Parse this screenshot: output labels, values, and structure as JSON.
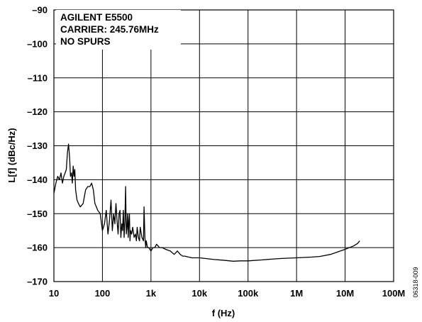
{
  "chart_data": {
    "type": "line",
    "title": "",
    "xlabel": "f (Hz)",
    "ylabel": "L[f] (dBc/Hz)",
    "x_scale": "log",
    "xlim": [
      10,
      100000000
    ],
    "ylim": [
      -170,
      -90
    ],
    "grid": true,
    "x_ticks": [
      {
        "value": 10,
        "label": "10"
      },
      {
        "value": 100,
        "label": "100"
      },
      {
        "value": 1000,
        "label": "1k"
      },
      {
        "value": 10000,
        "label": "10k"
      },
      {
        "value": 100000,
        "label": "100k"
      },
      {
        "value": 1000000,
        "label": "1M"
      },
      {
        "value": 10000000,
        "label": "10M"
      },
      {
        "value": 100000000,
        "label": "100M"
      }
    ],
    "y_ticks": [
      {
        "value": -90,
        "label": "–90"
      },
      {
        "value": -100,
        "label": "–100"
      },
      {
        "value": -110,
        "label": "–110"
      },
      {
        "value": -120,
        "label": "–120"
      },
      {
        "value": -130,
        "label": "–130"
      },
      {
        "value": -140,
        "label": "–140"
      },
      {
        "value": -150,
        "label": "–150"
      },
      {
        "value": -160,
        "label": "–160"
      },
      {
        "value": -170,
        "label": "–170"
      }
    ],
    "annotations": [
      "AGILENT E5500",
      "CARRIER: 245.76MHz",
      "NO SPURS"
    ],
    "figure_id": "06318-009",
    "series": [
      {
        "x": [
          10,
          11,
          12,
          13,
          14,
          15,
          16,
          17,
          18,
          19,
          20,
          21,
          22,
          23,
          24,
          25,
          26,
          27,
          28,
          30,
          32,
          35,
          40,
          45,
          50,
          55,
          60,
          65,
          70,
          75,
          80,
          90,
          100,
          110,
          120,
          130,
          140,
          150,
          160,
          170,
          180,
          190,
          200,
          210,
          220,
          230,
          240,
          250,
          260,
          270,
          280,
          290,
          300,
          310,
          320,
          330,
          340,
          350,
          360,
          370,
          380,
          400,
          420,
          450,
          480,
          500,
          520,
          550,
          580,
          600,
          650,
          700,
          720,
          750,
          780,
          800,
          850,
          900,
          1000,
          1100,
          1200,
          1300,
          1500,
          1700,
          2000,
          2500,
          3000,
          3500,
          4000,
          4500,
          5000,
          6000,
          7000,
          8000,
          10000,
          15000,
          20000,
          30000,
          50000,
          70000,
          100000,
          200000,
          300000,
          500000,
          1000000,
          2000000,
          3000000,
          5000000,
          7000000,
          10000000,
          15000000,
          18000000,
          20000000
        ],
        "y": [
          -144,
          -141,
          -139,
          -140,
          -138,
          -141,
          -139,
          -138,
          -137,
          -132,
          -129.5,
          -133,
          -139,
          -138,
          -141,
          -136,
          -139,
          -137,
          -143,
          -146,
          -147,
          -148,
          -147,
          -143,
          -142,
          -142,
          -141,
          -143,
          -147,
          -148,
          -149,
          -150,
          -155,
          -153,
          -149,
          -156,
          -152,
          -146,
          -155,
          -150,
          -153,
          -147,
          -152,
          -156,
          -150,
          -149,
          -157,
          -153,
          -155,
          -149,
          -157,
          -152,
          -142,
          -156,
          -154,
          -150,
          -157,
          -152,
          -150,
          -158,
          -155,
          -156,
          -154,
          -157,
          -156,
          -158,
          -154,
          -157,
          -158,
          -154,
          -157,
          -158,
          -148,
          -157,
          -160,
          -158,
          -160,
          -160,
          -161,
          -160,
          -160,
          -159,
          -160,
          -160,
          -160.5,
          -161,
          -162,
          -161,
          -162,
          -162.5,
          -162.5,
          -162.8,
          -163,
          -163,
          -163,
          -163.3,
          -163.5,
          -163.7,
          -164,
          -163.9,
          -163.9,
          -163.6,
          -163.4,
          -163.2,
          -163,
          -162.8,
          -162.6,
          -162,
          -161.3,
          -160.5,
          -159.5,
          -158.8,
          -158
        ]
      }
    ]
  }
}
